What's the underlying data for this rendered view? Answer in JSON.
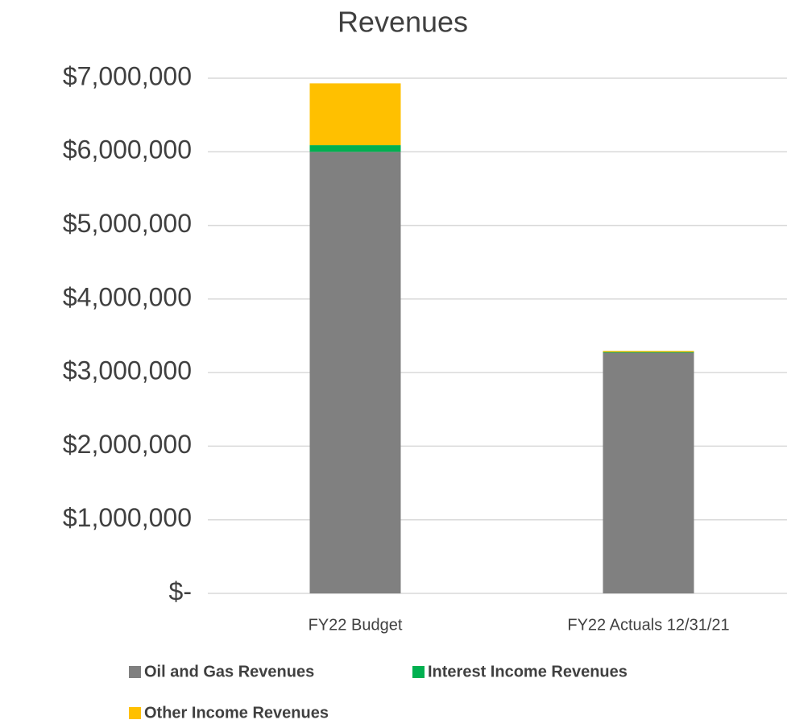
{
  "chart_data": {
    "type": "stacked_bar",
    "title": "Revenues",
    "categories": [
      "FY22 Budget",
      "FY22 Actuals 12/31/21"
    ],
    "series": [
      {
        "name": "Oil and Gas Revenues",
        "color": "#808080",
        "values": [
          6000000,
          3270000
        ]
      },
      {
        "name": "Interest Income Revenues",
        "color": "#00b050",
        "values": [
          90000,
          10000
        ]
      },
      {
        "name": "Other Income Revenues",
        "color": "#ffc000",
        "values": [
          840000,
          15000
        ]
      }
    ],
    "ylim": [
      0,
      7000000
    ],
    "yticks": [
      {
        "value": 0,
        "label": "$-"
      },
      {
        "value": 1000000,
        "label": "$1,000,000"
      },
      {
        "value": 2000000,
        "label": "$2,000,000"
      },
      {
        "value": 3000000,
        "label": "$3,000,000"
      },
      {
        "value": 4000000,
        "label": "$4,000,000"
      },
      {
        "value": 5000000,
        "label": "$5,000,000"
      },
      {
        "value": 6000000,
        "label": "$6,000,000"
      },
      {
        "value": 7000000,
        "label": "$7,000,000"
      }
    ],
    "grid": true,
    "legend": "bottom"
  }
}
